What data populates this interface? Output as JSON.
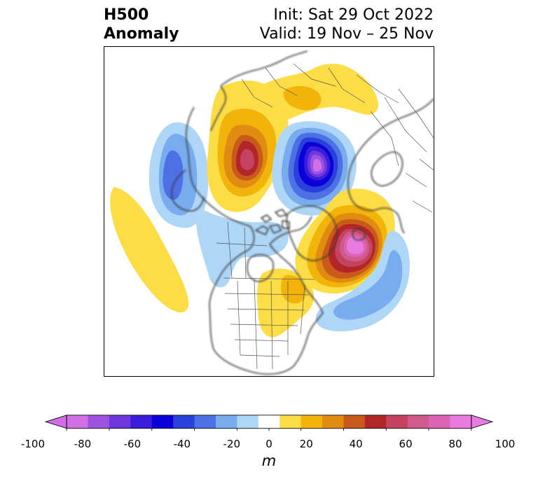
{
  "header": {
    "title_line1": "H500",
    "title_line2": "Anomaly",
    "init_text": "Init: Sat 29 Oct 2022",
    "valid_text": "Valid: 19 Nov – 25 Nov"
  },
  "map": {
    "projection": "north-polar-stereographic",
    "field": "500 hPa geopotential height anomaly",
    "features": [
      {
        "name": "gulf-of-alaska-low",
        "sign": "negative",
        "peak": -45
      },
      {
        "name": "siberia-ridge",
        "sign": "positive",
        "peak": 75
      },
      {
        "name": "arctic-trough",
        "sign": "negative",
        "peak": -100
      },
      {
        "name": "greenland-ridge",
        "sign": "positive",
        "peak": 100
      },
      {
        "name": "north-atlantic-trough",
        "sign": "negative",
        "peak": -35
      },
      {
        "name": "pacific-ridge",
        "sign": "positive",
        "peak": 15
      },
      {
        "name": "eastern-north-america-ridge",
        "sign": "positive",
        "peak": 25
      }
    ]
  },
  "colorbar": {
    "boundaries": [
      -100,
      -90,
      -80,
      -70,
      -60,
      -50,
      -40,
      -30,
      -20,
      -10,
      10,
      20,
      30,
      40,
      50,
      60,
      70,
      80,
      90,
      100
    ],
    "colors": [
      "#d170e6",
      "#9e52e0",
      "#6e38de",
      "#3b1edb",
      "#0a00d8",
      "#2a40da",
      "#4e70e5",
      "#78acef",
      "#aed6f7",
      "#ffffff",
      "#fddd46",
      "#f2b40a",
      "#e08c12",
      "#c85a1a",
      "#b2262a",
      "#c44460",
      "#d05a8c",
      "#dc64b4",
      "#e87ae0"
    ],
    "under_color": "#d170e6",
    "over_color": "#e87ae0",
    "tick_labels": [
      "-100",
      "-80",
      "-60",
      "-40",
      "-20",
      "0",
      "20",
      "40",
      "60",
      "80",
      "100"
    ],
    "unit": "m"
  }
}
